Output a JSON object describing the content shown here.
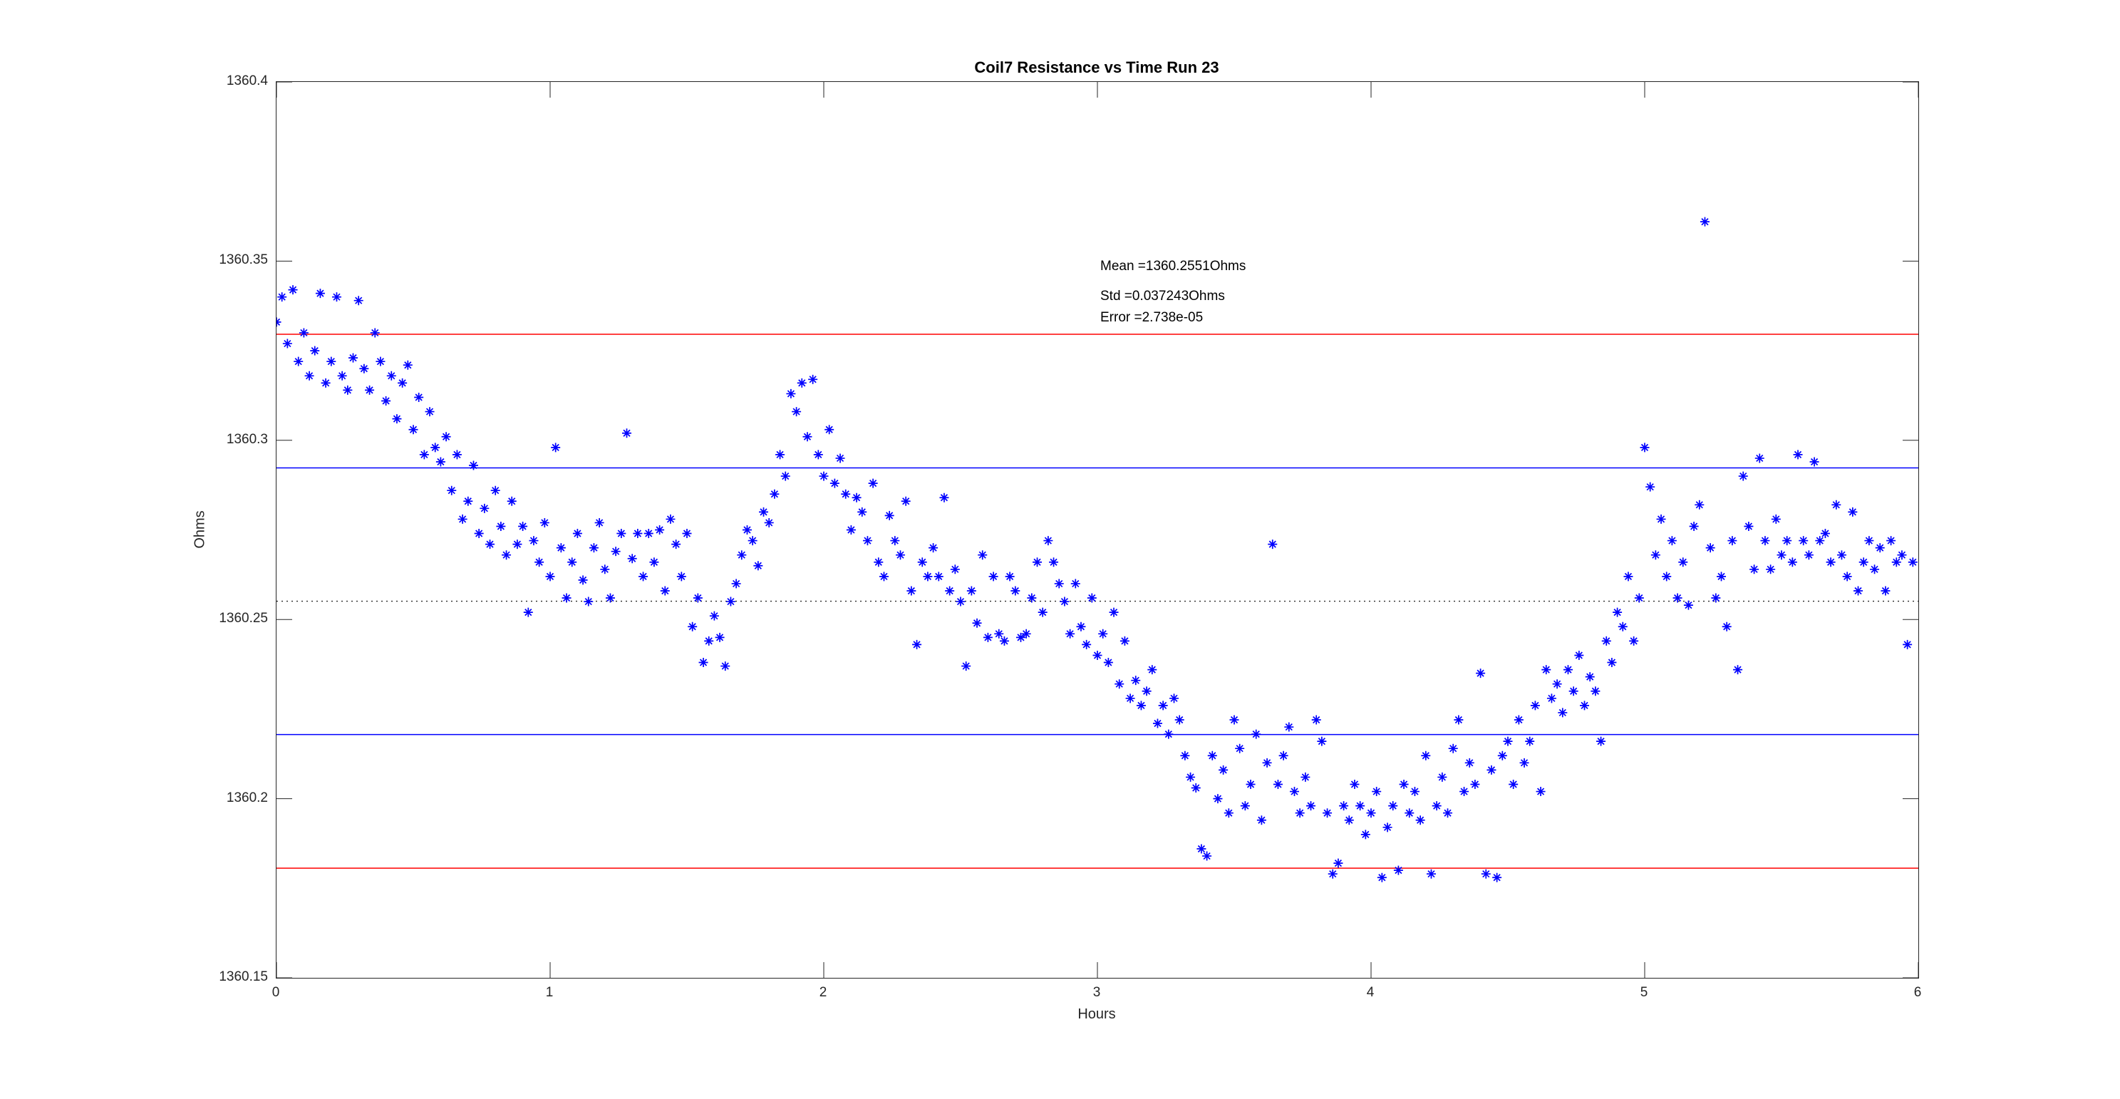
{
  "title": "Coil7 Resistance vs Time Run 23",
  "annotations": {
    "mean": "Mean =1360.2551Ohms",
    "std": "Std =0.037243Ohms",
    "error": "Error =2.738e-05"
  },
  "stats": {
    "mean_ohms": 1360.2551,
    "std_ohms": 0.037243,
    "error": 2.738e-05
  },
  "colors": {
    "marker": "#0000ff",
    "sigma_line": "#0000ff",
    "two_sigma_line": "#ff0000",
    "mean_line": "#2b2b2b",
    "axis": "#262626"
  },
  "chart_data": {
    "type": "scatter",
    "title": "Coil7 Resistance vs Time Run 23",
    "xlabel": "Hours",
    "ylabel": "Ohms",
    "xlim": [
      0,
      6
    ],
    "ylim": [
      1360.15,
      1360.4
    ],
    "xticks": [
      0,
      1,
      2,
      3,
      4,
      5,
      6
    ],
    "xtick_labels": [
      "0",
      "1",
      "2",
      "3",
      "4",
      "5",
      "6"
    ],
    "yticks": [
      1360.15,
      1360.2,
      1360.25,
      1360.3,
      1360.35,
      1360.4
    ],
    "ytick_labels": [
      "1360.15",
      "1360.2",
      "1360.25",
      "1360.3",
      "1360.35",
      "1360.4"
    ],
    "grid": false,
    "marker": "asterisk",
    "reference_lines": [
      {
        "name": "mean",
        "value": 1360.2551,
        "color": "#2b2b2b",
        "style": "dotted"
      },
      {
        "name": "plus-sigma",
        "value": 1360.2923,
        "color": "#0000ff",
        "style": "solid"
      },
      {
        "name": "minus-sigma",
        "value": 1360.2179,
        "color": "#0000ff",
        "style": "solid"
      },
      {
        "name": "plus-2sigma",
        "value": 1360.3296,
        "color": "#ff0000",
        "style": "solid"
      },
      {
        "name": "minus-2sigma",
        "value": 1360.1806,
        "color": "#ff0000",
        "style": "solid"
      }
    ],
    "series_name": "Coil7 resistance",
    "points": [
      [
        0.0,
        1360.333
      ],
      [
        0.02,
        1360.34
      ],
      [
        0.04,
        1360.327
      ],
      [
        0.06,
        1360.342
      ],
      [
        0.08,
        1360.322
      ],
      [
        0.1,
        1360.33
      ],
      [
        0.12,
        1360.318
      ],
      [
        0.14,
        1360.325
      ],
      [
        0.16,
        1360.341
      ],
      [
        0.18,
        1360.316
      ],
      [
        0.2,
        1360.322
      ],
      [
        0.22,
        1360.34
      ],
      [
        0.24,
        1360.318
      ],
      [
        0.26,
        1360.314
      ],
      [
        0.28,
        1360.323
      ],
      [
        0.3,
        1360.339
      ],
      [
        0.32,
        1360.32
      ],
      [
        0.34,
        1360.314
      ],
      [
        0.36,
        1360.33
      ],
      [
        0.38,
        1360.322
      ],
      [
        0.4,
        1360.311
      ],
      [
        0.42,
        1360.318
      ],
      [
        0.44,
        1360.306
      ],
      [
        0.46,
        1360.316
      ],
      [
        0.48,
        1360.321
      ],
      [
        0.5,
        1360.303
      ],
      [
        0.52,
        1360.312
      ],
      [
        0.54,
        1360.296
      ],
      [
        0.56,
        1360.308
      ],
      [
        0.58,
        1360.298
      ],
      [
        0.6,
        1360.294
      ],
      [
        0.62,
        1360.301
      ],
      [
        0.64,
        1360.286
      ],
      [
        0.66,
        1360.296
      ],
      [
        0.68,
        1360.278
      ],
      [
        0.7,
        1360.283
      ],
      [
        0.72,
        1360.293
      ],
      [
        0.74,
        1360.274
      ],
      [
        0.76,
        1360.281
      ],
      [
        0.78,
        1360.271
      ],
      [
        0.8,
        1360.286
      ],
      [
        0.82,
        1360.276
      ],
      [
        0.84,
        1360.268
      ],
      [
        0.86,
        1360.283
      ],
      [
        0.88,
        1360.271
      ],
      [
        0.9,
        1360.276
      ],
      [
        0.92,
        1360.252
      ],
      [
        0.94,
        1360.272
      ],
      [
        0.96,
        1360.266
      ],
      [
        0.98,
        1360.277
      ],
      [
        1.0,
        1360.262
      ],
      [
        1.02,
        1360.298
      ],
      [
        1.04,
        1360.27
      ],
      [
        1.06,
        1360.256
      ],
      [
        1.08,
        1360.266
      ],
      [
        1.1,
        1360.274
      ],
      [
        1.12,
        1360.261
      ],
      [
        1.14,
        1360.255
      ],
      [
        1.16,
        1360.27
      ],
      [
        1.18,
        1360.277
      ],
      [
        1.2,
        1360.264
      ],
      [
        1.22,
        1360.256
      ],
      [
        1.24,
        1360.269
      ],
      [
        1.26,
        1360.274
      ],
      [
        1.28,
        1360.302
      ],
      [
        1.3,
        1360.267
      ],
      [
        1.32,
        1360.274
      ],
      [
        1.34,
        1360.262
      ],
      [
        1.36,
        1360.274
      ],
      [
        1.38,
        1360.266
      ],
      [
        1.4,
        1360.275
      ],
      [
        1.42,
        1360.258
      ],
      [
        1.44,
        1360.278
      ],
      [
        1.46,
        1360.271
      ],
      [
        1.48,
        1360.262
      ],
      [
        1.5,
        1360.274
      ],
      [
        1.52,
        1360.248
      ],
      [
        1.54,
        1360.256
      ],
      [
        1.56,
        1360.238
      ],
      [
        1.58,
        1360.244
      ],
      [
        1.6,
        1360.251
      ],
      [
        1.62,
        1360.245
      ],
      [
        1.64,
        1360.237
      ],
      [
        1.66,
        1360.255
      ],
      [
        1.68,
        1360.26
      ],
      [
        1.7,
        1360.268
      ],
      [
        1.72,
        1360.275
      ],
      [
        1.74,
        1360.272
      ],
      [
        1.76,
        1360.265
      ],
      [
        1.78,
        1360.28
      ],
      [
        1.8,
        1360.277
      ],
      [
        1.82,
        1360.285
      ],
      [
        1.84,
        1360.296
      ],
      [
        1.86,
        1360.29
      ],
      [
        1.88,
        1360.313
      ],
      [
        1.9,
        1360.308
      ],
      [
        1.92,
        1360.316
      ],
      [
        1.94,
        1360.301
      ],
      [
        1.96,
        1360.317
      ],
      [
        1.98,
        1360.296
      ],
      [
        2.0,
        1360.29
      ],
      [
        2.02,
        1360.303
      ],
      [
        2.04,
        1360.288
      ],
      [
        2.06,
        1360.295
      ],
      [
        2.08,
        1360.285
      ],
      [
        2.1,
        1360.275
      ],
      [
        2.12,
        1360.284
      ],
      [
        2.14,
        1360.28
      ],
      [
        2.16,
        1360.272
      ],
      [
        2.18,
        1360.288
      ],
      [
        2.2,
        1360.266
      ],
      [
        2.22,
        1360.262
      ],
      [
        2.24,
        1360.279
      ],
      [
        2.26,
        1360.272
      ],
      [
        2.28,
        1360.268
      ],
      [
        2.3,
        1360.283
      ],
      [
        2.32,
        1360.258
      ],
      [
        2.34,
        1360.243
      ],
      [
        2.36,
        1360.266
      ],
      [
        2.38,
        1360.262
      ],
      [
        2.4,
        1360.27
      ],
      [
        2.42,
        1360.262
      ],
      [
        2.44,
        1360.284
      ],
      [
        2.46,
        1360.258
      ],
      [
        2.48,
        1360.264
      ],
      [
        2.5,
        1360.255
      ],
      [
        2.52,
        1360.237
      ],
      [
        2.54,
        1360.258
      ],
      [
        2.56,
        1360.249
      ],
      [
        2.58,
        1360.268
      ],
      [
        2.6,
        1360.245
      ],
      [
        2.62,
        1360.262
      ],
      [
        2.64,
        1360.246
      ],
      [
        2.66,
        1360.244
      ],
      [
        2.68,
        1360.262
      ],
      [
        2.7,
        1360.258
      ],
      [
        2.72,
        1360.245
      ],
      [
        2.74,
        1360.246
      ],
      [
        2.76,
        1360.256
      ],
      [
        2.78,
        1360.266
      ],
      [
        2.8,
        1360.252
      ],
      [
        2.82,
        1360.272
      ],
      [
        2.84,
        1360.266
      ],
      [
        2.86,
        1360.26
      ],
      [
        2.88,
        1360.255
      ],
      [
        2.9,
        1360.246
      ],
      [
        2.92,
        1360.26
      ],
      [
        2.94,
        1360.248
      ],
      [
        2.96,
        1360.243
      ],
      [
        2.98,
        1360.256
      ],
      [
        3.0,
        1360.24
      ],
      [
        3.02,
        1360.246
      ],
      [
        3.04,
        1360.238
      ],
      [
        3.06,
        1360.252
      ],
      [
        3.08,
        1360.232
      ],
      [
        3.1,
        1360.244
      ],
      [
        3.12,
        1360.228
      ],
      [
        3.14,
        1360.233
      ],
      [
        3.16,
        1360.226
      ],
      [
        3.18,
        1360.23
      ],
      [
        3.2,
        1360.236
      ],
      [
        3.22,
        1360.221
      ],
      [
        3.24,
        1360.226
      ],
      [
        3.26,
        1360.218
      ],
      [
        3.28,
        1360.228
      ],
      [
        3.3,
        1360.222
      ],
      [
        3.32,
        1360.212
      ],
      [
        3.34,
        1360.206
      ],
      [
        3.36,
        1360.203
      ],
      [
        3.38,
        1360.186
      ],
      [
        3.4,
        1360.184
      ],
      [
        3.42,
        1360.212
      ],
      [
        3.44,
        1360.2
      ],
      [
        3.46,
        1360.208
      ],
      [
        3.48,
        1360.196
      ],
      [
        3.5,
        1360.222
      ],
      [
        3.52,
        1360.214
      ],
      [
        3.54,
        1360.198
      ],
      [
        3.56,
        1360.204
      ],
      [
        3.58,
        1360.218
      ],
      [
        3.6,
        1360.194
      ],
      [
        3.62,
        1360.21
      ],
      [
        3.64,
        1360.271
      ],
      [
        3.66,
        1360.204
      ],
      [
        3.68,
        1360.212
      ],
      [
        3.7,
        1360.22
      ],
      [
        3.72,
        1360.202
      ],
      [
        3.74,
        1360.196
      ],
      [
        3.76,
        1360.206
      ],
      [
        3.78,
        1360.198
      ],
      [
        3.8,
        1360.222
      ],
      [
        3.82,
        1360.216
      ],
      [
        3.84,
        1360.196
      ],
      [
        3.86,
        1360.179
      ],
      [
        3.88,
        1360.182
      ],
      [
        3.9,
        1360.198
      ],
      [
        3.92,
        1360.194
      ],
      [
        3.94,
        1360.204
      ],
      [
        3.96,
        1360.198
      ],
      [
        3.98,
        1360.19
      ],
      [
        4.0,
        1360.196
      ],
      [
        4.02,
        1360.202
      ],
      [
        4.04,
        1360.178
      ],
      [
        4.06,
        1360.192
      ],
      [
        4.08,
        1360.198
      ],
      [
        4.1,
        1360.18
      ],
      [
        4.12,
        1360.204
      ],
      [
        4.14,
        1360.196
      ],
      [
        4.16,
        1360.202
      ],
      [
        4.18,
        1360.194
      ],
      [
        4.2,
        1360.212
      ],
      [
        4.22,
        1360.179
      ],
      [
        4.24,
        1360.198
      ],
      [
        4.26,
        1360.206
      ],
      [
        4.28,
        1360.196
      ],
      [
        4.3,
        1360.214
      ],
      [
        4.32,
        1360.222
      ],
      [
        4.34,
        1360.202
      ],
      [
        4.36,
        1360.21
      ],
      [
        4.38,
        1360.204
      ],
      [
        4.4,
        1360.235
      ],
      [
        4.42,
        1360.179
      ],
      [
        4.44,
        1360.208
      ],
      [
        4.46,
        1360.178
      ],
      [
        4.48,
        1360.212
      ],
      [
        4.5,
        1360.216
      ],
      [
        4.52,
        1360.204
      ],
      [
        4.54,
        1360.222
      ],
      [
        4.56,
        1360.21
      ],
      [
        4.58,
        1360.216
      ],
      [
        4.6,
        1360.226
      ],
      [
        4.62,
        1360.202
      ],
      [
        4.64,
        1360.236
      ],
      [
        4.66,
        1360.228
      ],
      [
        4.68,
        1360.232
      ],
      [
        4.7,
        1360.224
      ],
      [
        4.72,
        1360.236
      ],
      [
        4.74,
        1360.23
      ],
      [
        4.76,
        1360.24
      ],
      [
        4.78,
        1360.226
      ],
      [
        4.8,
        1360.234
      ],
      [
        4.82,
        1360.23
      ],
      [
        4.84,
        1360.216
      ],
      [
        4.86,
        1360.244
      ],
      [
        4.88,
        1360.238
      ],
      [
        4.9,
        1360.252
      ],
      [
        4.92,
        1360.248
      ],
      [
        4.94,
        1360.262
      ],
      [
        4.96,
        1360.244
      ],
      [
        4.98,
        1360.256
      ],
      [
        5.0,
        1360.298
      ],
      [
        5.02,
        1360.287
      ],
      [
        5.04,
        1360.268
      ],
      [
        5.06,
        1360.278
      ],
      [
        5.08,
        1360.262
      ],
      [
        5.1,
        1360.272
      ],
      [
        5.12,
        1360.256
      ],
      [
        5.14,
        1360.266
      ],
      [
        5.16,
        1360.254
      ],
      [
        5.18,
        1360.276
      ],
      [
        5.2,
        1360.282
      ],
      [
        5.22,
        1360.361
      ],
      [
        5.24,
        1360.27
      ],
      [
        5.26,
        1360.256
      ],
      [
        5.28,
        1360.262
      ],
      [
        5.3,
        1360.248
      ],
      [
        5.32,
        1360.272
      ],
      [
        5.34,
        1360.236
      ],
      [
        5.36,
        1360.29
      ],
      [
        5.38,
        1360.276
      ],
      [
        5.4,
        1360.264
      ],
      [
        5.42,
        1360.295
      ],
      [
        5.44,
        1360.272
      ],
      [
        5.46,
        1360.264
      ],
      [
        5.48,
        1360.278
      ],
      [
        5.5,
        1360.268
      ],
      [
        5.52,
        1360.272
      ],
      [
        5.54,
        1360.266
      ],
      [
        5.56,
        1360.296
      ],
      [
        5.58,
        1360.272
      ],
      [
        5.6,
        1360.268
      ],
      [
        5.62,
        1360.294
      ],
      [
        5.64,
        1360.272
      ],
      [
        5.66,
        1360.274
      ],
      [
        5.68,
        1360.266
      ],
      [
        5.7,
        1360.282
      ],
      [
        5.72,
        1360.268
      ],
      [
        5.74,
        1360.262
      ],
      [
        5.76,
        1360.28
      ],
      [
        5.78,
        1360.258
      ],
      [
        5.8,
        1360.266
      ],
      [
        5.82,
        1360.272
      ],
      [
        5.84,
        1360.264
      ],
      [
        5.86,
        1360.27
      ],
      [
        5.88,
        1360.258
      ],
      [
        5.9,
        1360.272
      ],
      [
        5.92,
        1360.266
      ],
      [
        5.94,
        1360.268
      ],
      [
        5.96,
        1360.243
      ],
      [
        5.98,
        1360.266
      ]
    ]
  }
}
